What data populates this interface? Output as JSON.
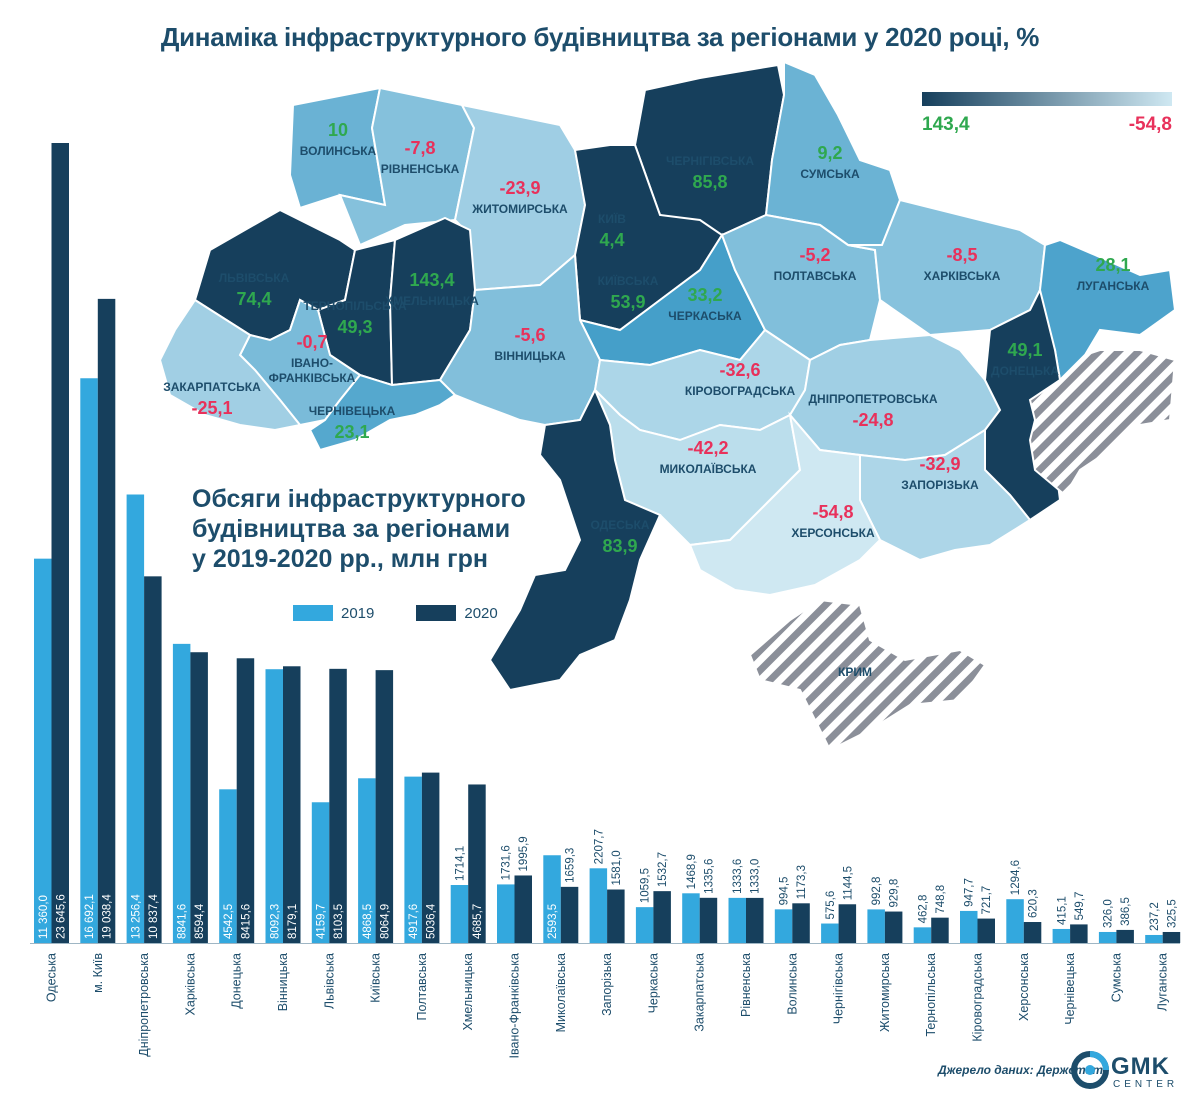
{
  "map": {
    "title": "Динаміка інфраструктурного будівництва за регіонами у 2020 році, %",
    "scale": {
      "min_label": "143,4",
      "max_label": "-54,8",
      "dark_color": "#163f5c",
      "light_color": "#cfe8f2"
    },
    "colors": {
      "positive": "#2fa84f",
      "negative": "#e8315b"
    },
    "regions": [
      {
        "name": "ВОЛИНСЬКА",
        "value": "10"
      },
      {
        "name": "РІВНЕНСЬКА",
        "value": "-7,8"
      },
      {
        "name": "ЖИТОМИРСЬКА",
        "value": "-23,9"
      },
      {
        "name": "КИЇВ",
        "value": "4,4"
      },
      {
        "name": "ЧЕРНІГІВСЬКА",
        "value": "85,8"
      },
      {
        "name": "СУМСЬКА",
        "value": "9,2"
      },
      {
        "name": "ЛЬВІВСЬКА",
        "value": "74,4"
      },
      {
        "name": "ТЕРНОПІЛЬСЬКА",
        "value": "49,3"
      },
      {
        "name": "ХМЕЛЬНИЦЬКА",
        "value": "143,4"
      },
      {
        "name": "КИЇВСЬКА",
        "value": "53,9"
      },
      {
        "name": "ЧЕРКАСЬКА",
        "value": "33,2"
      },
      {
        "name": "ПОЛТАВСЬКА",
        "value": "-5,2"
      },
      {
        "name": "ХАРКІВСЬКА",
        "value": "-8,5"
      },
      {
        "name": "ЛУГАНСЬКА",
        "value": "28,1"
      },
      {
        "name": "ІВАНО-ФРАНКІВСЬКА",
        "value": "-0,7"
      },
      {
        "name": "ЗАКАРПАТСЬКА",
        "value": "-25,1"
      },
      {
        "name": "ЧЕРНІВЕЦЬКА",
        "value": "23,1"
      },
      {
        "name": "ВІННИЦЬКА",
        "value": "-5,6"
      },
      {
        "name": "КІРОВОГРАДСЬКА",
        "value": "-32,6"
      },
      {
        "name": "ДНІПРОПЕТРОВСЬКА",
        "value": "-24,8"
      },
      {
        "name": "ДОНЕЦЬКА",
        "value": "49,1"
      },
      {
        "name": "МИКОЛАЇВСЬКА",
        "value": "-42,2"
      },
      {
        "name": "ЗАПОРІЗЬКА",
        "value": "-32,9"
      },
      {
        "name": "ОДЕСЬКА",
        "value": "83,9"
      },
      {
        "name": "ХЕРСОНСЬКА",
        "value": "-54,8"
      },
      {
        "name": "КРИМ",
        "value": ""
      }
    ]
  },
  "chart_data": {
    "type": "bar",
    "title": "Обсяги інфраструктурного будівництва за регіонами у 2019-2020 рр., млн грн",
    "title_lines": [
      "Обсяги інфраструктурного",
      "будівництва за регіонами",
      "у 2019-2020 рр., млн грн"
    ],
    "legend_placement": "top-center",
    "ylim": [
      0,
      24000
    ],
    "categories": [
      "Одеська",
      "м. Київ",
      "Дніпропетровська",
      "Харківська",
      "Донецька",
      "Вінницька",
      "Львівська",
      "Київська",
      "Полтавська",
      "Хмельницька",
      "Івано-Франківська",
      "Миколаївська",
      "Запорізька",
      "Черкаська",
      "Закарпатська",
      "Рівненська",
      "Волинська",
      "Чернігівська",
      "Житомирська",
      "Тернопільська",
      "Кіровоградська",
      "Херсонська",
      "Чернівецька",
      "Сумська",
      "Луганська"
    ],
    "series": [
      {
        "name": "2019",
        "color": "#33a8de",
        "values": [
          11360.0,
          16692.1,
          13256.4,
          8841.6,
          4542.5,
          8092.3,
          4159.7,
          4868.5,
          4917.6,
          1714.1,
          1731.6,
          2593.5,
          2207.7,
          1059.5,
          1468.9,
          1333.6,
          994.5,
          575.6,
          992.8,
          462.8,
          947.7,
          1294.6,
          415.1,
          326.0,
          237.2
        ],
        "labels": [
          "11 360,0",
          "16 692,1",
          "13 256,4",
          "8841,6",
          "4542,5",
          "8092,3",
          "4159,7",
          "4868,5",
          "4917,6",
          "1714,1",
          "1731,6",
          "2593,5",
          "2207,7",
          "1059,5",
          "1468,9",
          "1333,6",
          "994,5",
          "575,6",
          "992,8",
          "462,8",
          "947,7",
          "1294,6",
          "415,1",
          "326,0",
          "237,2"
        ]
      },
      {
        "name": "2020",
        "color": "#163f5c",
        "values": [
          23645.6,
          19038.4,
          10837.4,
          8594.4,
          8415.6,
          8179.1,
          8103.5,
          8064.9,
          5036.4,
          4685.7,
          1995.9,
          1659.3,
          1581.0,
          1532.7,
          1335.6,
          1333.0,
          1173.3,
          1144.5,
          929.8,
          748.8,
          721.7,
          620.3,
          549.7,
          386.5,
          325.5
        ],
        "labels": [
          "23 645,6",
          "19 038,4",
          "10 837,4",
          "8594,4",
          "8415,6",
          "8179,1",
          "8103,5",
          "8064,9",
          "5036,4",
          "4685,7",
          "1995,9",
          "1659,3",
          "1581,0",
          "1532,7",
          "1335,6",
          "1333,0",
          "1173,3",
          "1144,5",
          "929,8",
          "748,8",
          "721,7",
          "620,3",
          "549,7",
          "386,5",
          "325,5"
        ]
      }
    ]
  },
  "footer": {
    "source": "Джерело даних: Держстат",
    "logo_text": "GMK",
    "logo_sub": "CENTER"
  }
}
